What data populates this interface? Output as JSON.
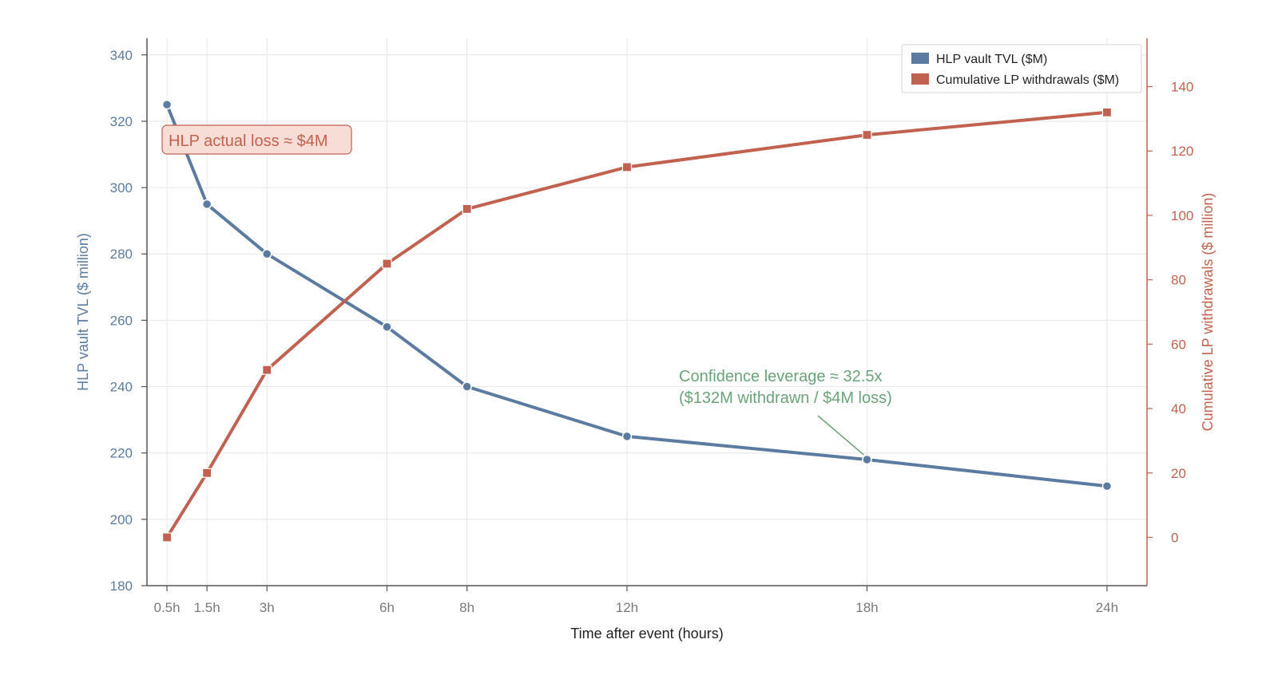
{
  "chart_data": {
    "type": "line",
    "xlabel": "Time after event (hours)",
    "x": [
      0.5,
      1.5,
      3,
      6,
      8,
      12,
      18,
      24
    ],
    "x_tick_labels": [
      "0.5h",
      "1.5h",
      "3h",
      "6h",
      "8h",
      "12h",
      "18h",
      "24h"
    ],
    "xlim": [
      0,
      25
    ],
    "y_left": {
      "label": "HLP vault TVL ($ million)",
      "lim": [
        180,
        345
      ],
      "ticks": [
        180,
        200,
        220,
        240,
        260,
        280,
        300,
        320,
        340
      ]
    },
    "y_right": {
      "label": "Cumulative LP withdrawals ($ million)",
      "lim": [
        -15,
        155
      ],
      "ticks": [
        0,
        20,
        40,
        60,
        80,
        100,
        120,
        140
      ]
    },
    "series": [
      {
        "name": "HLP vault TVL ($M)",
        "axis": "left",
        "marker": "circle",
        "color": "#5b7ba0",
        "values": [
          325,
          295,
          280,
          258,
          240,
          225,
          218,
          210
        ]
      },
      {
        "name": "Cumulative LP withdrawals ($M)",
        "axis": "right",
        "marker": "square",
        "color": "#c0624f",
        "values": [
          0,
          20,
          52,
          85,
          102,
          115,
          125,
          132
        ]
      }
    ],
    "annotations": [
      {
        "text": "HLP actual loss ≈ $4M",
        "color": "#c0624f",
        "boxed": true
      },
      {
        "lines": [
          "Confidence leverage ≈ 32.5x",
          "($132M withdrawn / $4M loss)"
        ],
        "color": "#6aa37a",
        "points_to": {
          "x": 18,
          "series": 0
        }
      }
    ],
    "legend": "top-right",
    "grid": true
  }
}
